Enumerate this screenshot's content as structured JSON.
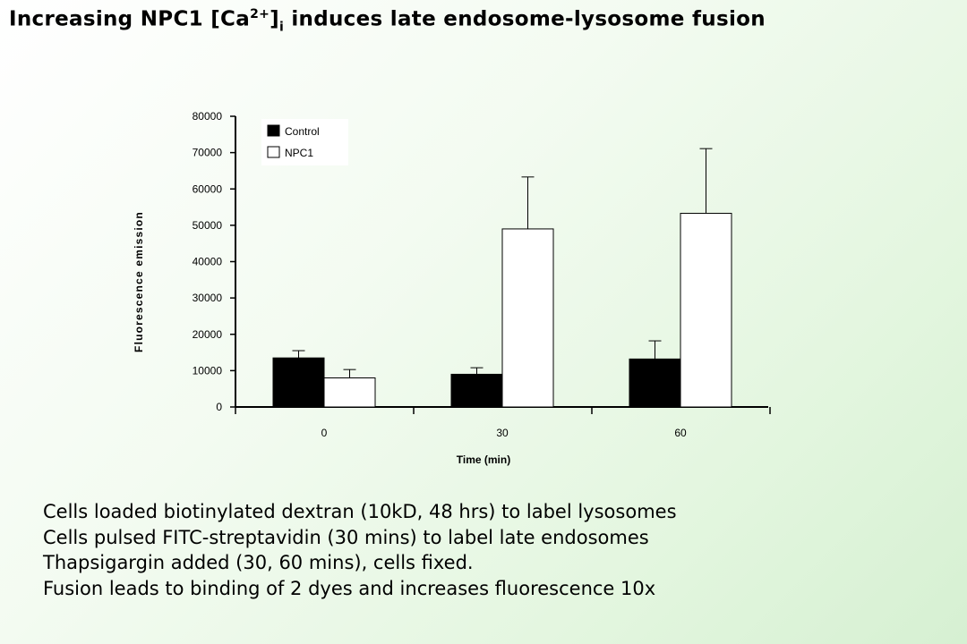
{
  "title": {
    "prefix": "Increasing NPC1 [Ca",
    "superscript": "2+",
    "bracket": "]",
    "subscript": "i",
    "suffix": " induces late endosome-lysosome fusion"
  },
  "notes": [
    "Cells loaded biotinylated dextran (10kD, 48 hrs) to label lysosomes",
    "Cells pulsed FITC-streptavidin (30 mins) to label late endosomes",
    "Thapsigargin added (30, 60 mins), cells fixed.",
    "Fusion leads to binding of 2 dyes and increases fluorescence 10x"
  ],
  "colors": {
    "control": "#000000",
    "npc1": "#ffffff",
    "background_gradient_end": "#d6f0d2"
  },
  "chart_data": {
    "type": "bar",
    "title": "",
    "xlabel": "Time (min)",
    "ylabel": "Fluorescence emission",
    "categories": [
      "0",
      "30",
      "60"
    ],
    "ylim": [
      0,
      80000
    ],
    "yticks": [
      0,
      10000,
      20000,
      30000,
      40000,
      50000,
      60000,
      70000,
      80000
    ],
    "legend_position": "top-left",
    "grid": false,
    "series": [
      {
        "name": "Control",
        "color": "#000000",
        "values": [
          13500,
          9000,
          13200
        ],
        "errors": [
          2000,
          1800,
          5000
        ]
      },
      {
        "name": "NPC1",
        "color": "#ffffff",
        "values": [
          8000,
          49000,
          53300
        ],
        "errors": [
          2300,
          14300,
          17800
        ]
      }
    ]
  }
}
